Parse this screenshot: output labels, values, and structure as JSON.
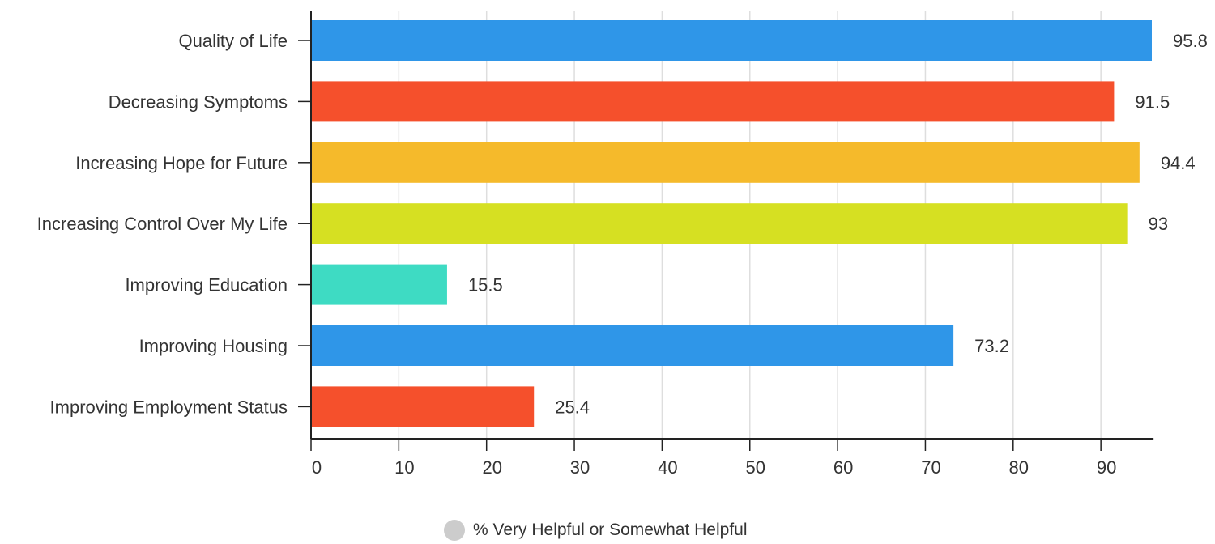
{
  "chart_data": {
    "type": "bar",
    "orientation": "horizontal",
    "categories": [
      "Quality of Life",
      "Decreasing Symptoms",
      "Increasing Hope for Future",
      "Increasing Control Over My Life",
      "Improving Education",
      "Improving Housing",
      "Improving Employment Status"
    ],
    "series": [
      {
        "name": "% Very Helpful or Somewhat Helpful",
        "values": [
          95.8,
          91.5,
          94.4,
          93,
          15.5,
          73.2,
          25.4
        ],
        "value_labels": [
          "95.8",
          "91.5",
          "94.4",
          "93",
          "15.5",
          "73.2",
          "25.4"
        ]
      }
    ],
    "bar_colors": [
      "#2f96e8",
      "#f5502c",
      "#f5ba2b",
      "#d6e022",
      "#3edbc3",
      "#2f96e8",
      "#f5502c"
    ],
    "xlim": [
      0,
      96
    ],
    "x_ticks": [
      0,
      10,
      20,
      30,
      40,
      50,
      60,
      70,
      80,
      90
    ],
    "x_tick_labels": [
      "0",
      "10",
      "20",
      "30",
      "40",
      "50",
      "60",
      "70",
      "80",
      "90"
    ],
    "grid": true,
    "legend_position": "bottom-center",
    "legend_color": "#cccccc",
    "title": "",
    "xlabel": "",
    "ylabel": ""
  }
}
